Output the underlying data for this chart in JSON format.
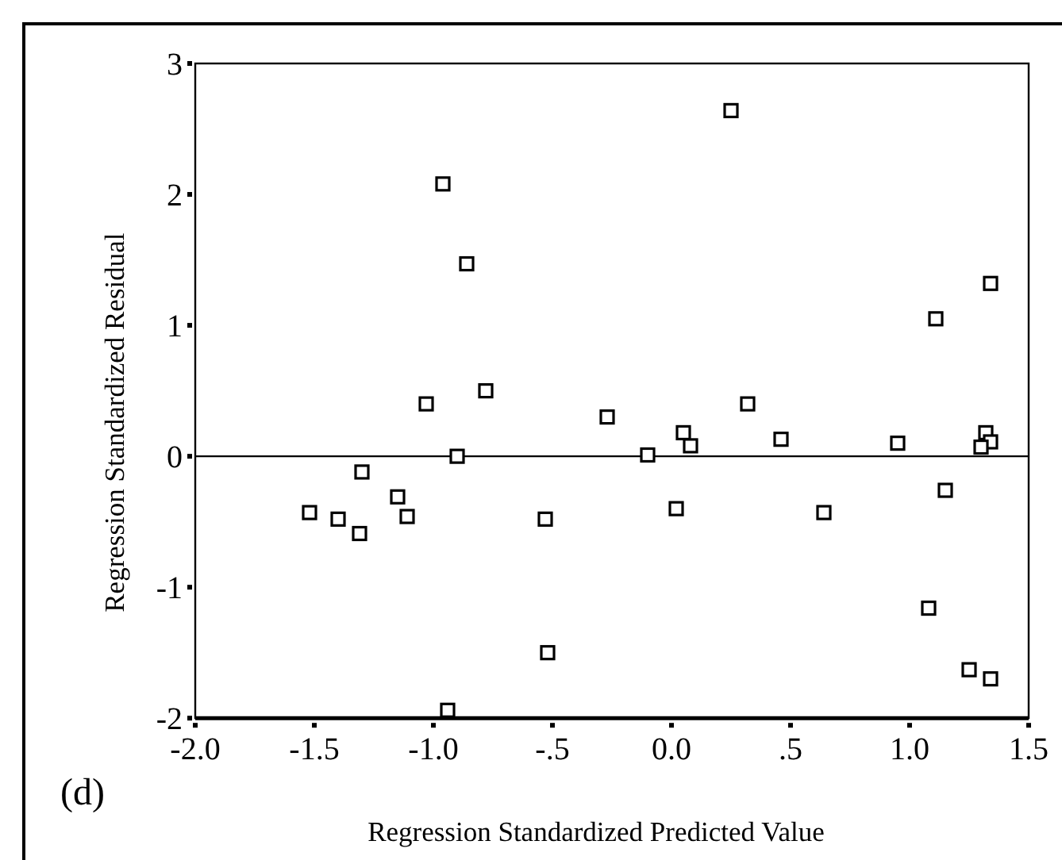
{
  "chart_data": {
    "type": "scatter",
    "xlabel": "Regression Standardized Predicted Value",
    "ylabel": "Regression Standardized Residual",
    "annotations": [
      "(d)"
    ],
    "marker": "square",
    "grid": false,
    "xlim": [
      -2,
      1.5
    ],
    "xticks": [
      {
        "value": -2,
        "label": "-2.0"
      },
      {
        "value": -1.5,
        "label": "-1.5"
      },
      {
        "value": -1,
        "label": "-1.0"
      },
      {
        "value": -0.5,
        "label": "-.5"
      },
      {
        "value": 0,
        "label": "0.0"
      },
      {
        "value": 0.5,
        "label": ".5"
      },
      {
        "value": 1,
        "label": "1.0"
      },
      {
        "value": 1.5,
        "label": "1.5"
      }
    ],
    "ylim": [
      -2,
      3
    ],
    "yticks": [
      -2,
      -1,
      0,
      1,
      2,
      3
    ],
    "ref_lines": [
      {
        "axis": "y",
        "value": 0,
        "color": "#000000"
      }
    ],
    "series": [
      {
        "color": "#000000",
        "x": [
          -0.96,
          -0.86,
          -1.03,
          -0.78,
          -0.9,
          -1.52,
          -1.4,
          -1.3,
          -1.31,
          -1.15,
          -1.11,
          -0.94,
          0.25,
          1.34,
          1.11,
          -0.27,
          0.32,
          0.05,
          0.08,
          -0.1,
          0.46,
          0.95,
          1.32,
          1.34,
          1.3,
          1.15,
          -0.53,
          0.02,
          0.64,
          1.08,
          -0.52,
          1.25,
          1.34
        ],
        "values": [
          2.08,
          1.47,
          0.4,
          0.5,
          0,
          -0.43,
          -0.48,
          -0.12,
          -0.59,
          -0.31,
          -0.46,
          -1.94,
          2.64,
          1.32,
          1.05,
          0.3,
          0.4,
          0.18,
          0.08,
          0.01,
          0.13,
          0.1,
          0.18,
          0.11,
          0.07,
          -0.26,
          -0.48,
          -0.4,
          -0.43,
          -1.16,
          -1.5,
          -1.63,
          -1.7
        ]
      }
    ]
  }
}
